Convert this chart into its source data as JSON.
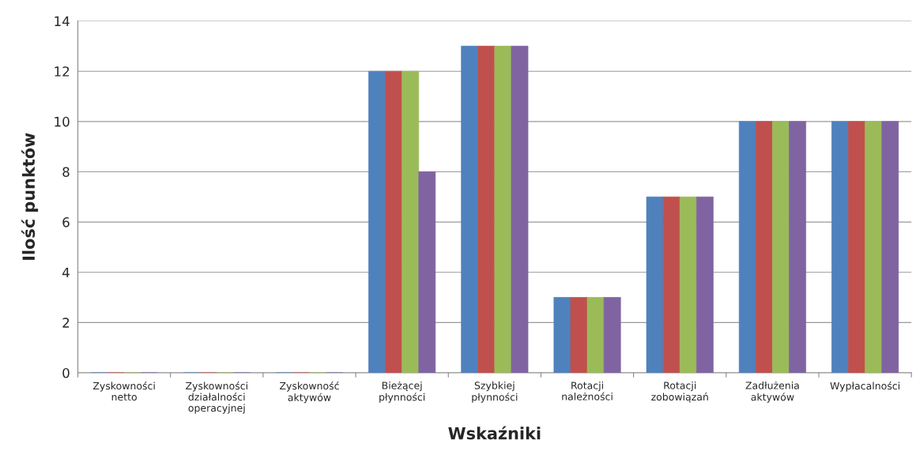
{
  "chart_data": {
    "type": "bar",
    "xlabel": "Wskaźniki",
    "ylabel": "Ilość punktów",
    "categories": [
      "Zyskowności\nnetto",
      "Zyskowności\ndziałalności\noperacyjnej",
      "Zyskowność\naktywów",
      "Bieżącej\npłynności",
      "Szybkiej\npłynności",
      "Rotacji\nnależności",
      "Rotacji\nzobowiązań",
      "Zadłużenia\naktywów",
      "Wypłacalności"
    ],
    "series": [
      {
        "color": "#4f81bd",
        "values": [
          0,
          0,
          0,
          12,
          13,
          3,
          7,
          10,
          10
        ]
      },
      {
        "color": "#c0504d",
        "values": [
          0,
          0,
          0,
          12,
          13,
          3,
          7,
          10,
          10
        ]
      },
      {
        "color": "#9bbb59",
        "values": [
          0,
          0,
          0,
          12,
          13,
          3,
          7,
          10,
          10
        ]
      },
      {
        "color": "#8064a2",
        "values": [
          0,
          0,
          0,
          8,
          13,
          3,
          7,
          10,
          10
        ]
      }
    ],
    "ylim": [
      0,
      14
    ],
    "yticks": [
      0,
      2,
      4,
      6,
      8,
      10,
      12,
      14
    ],
    "grid": "y",
    "legend": false
  }
}
